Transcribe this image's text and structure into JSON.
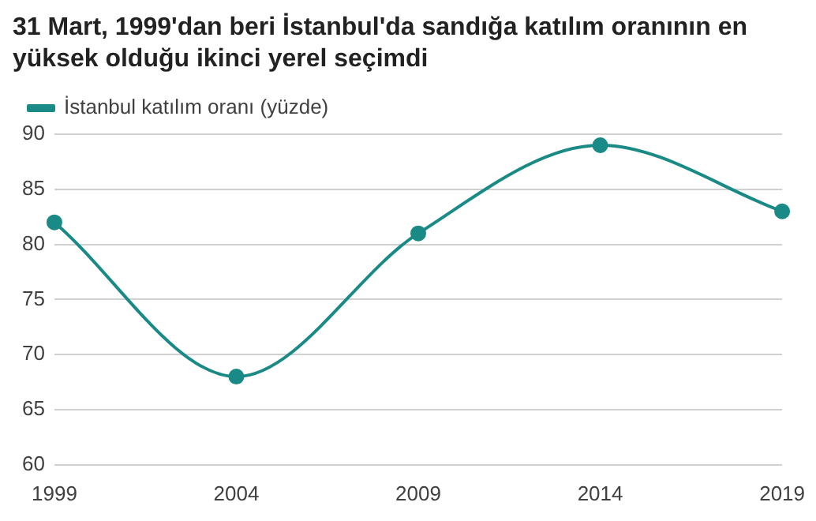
{
  "chart_data": {
    "type": "line",
    "title": "31 Mart, 1999'dan beri İstanbul'da sandığa katılım oranının en yüksek olduğu ikinci yerel seçimdi",
    "categories": [
      "1999",
      "2004",
      "2009",
      "2014",
      "2019"
    ],
    "series": [
      {
        "name": "İstanbul katılım oranı (yüzde)",
        "color": "#1a8a87",
        "values": [
          82,
          68,
          81,
          89,
          83
        ]
      }
    ],
    "ylim": [
      60,
      90
    ],
    "yticks": [
      60,
      65,
      70,
      75,
      80,
      85,
      90
    ],
    "grid": "y",
    "legend": "top left",
    "marker": "circle"
  }
}
